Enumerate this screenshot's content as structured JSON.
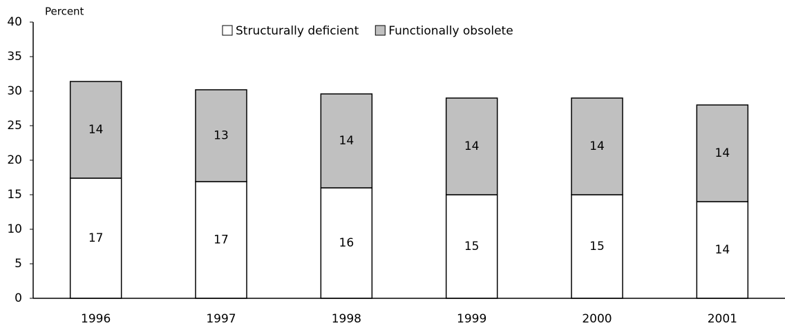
{
  "chart_data": {
    "type": "stacked_bar",
    "y_axis_label": "Percent",
    "categories": [
      "1996",
      "1997",
      "1998",
      "1999",
      "2000",
      "2001"
    ],
    "series": [
      {
        "name": "Structurally deficient",
        "color": "#ffffff",
        "values": [
          17.4,
          16.9,
          16,
          15,
          15,
          14
        ],
        "value_labels": [
          "17",
          "17",
          "16",
          "15",
          "15",
          "14"
        ]
      },
      {
        "name": "Functionally obsolete",
        "color": "#c0c0c0",
        "values": [
          14,
          13.3,
          13.6,
          14,
          14,
          14
        ],
        "value_labels": [
          "14",
          "13",
          "14",
          "14",
          "14",
          "14"
        ]
      }
    ],
    "ylim": [
      0,
      40
    ],
    "yticks": [
      0,
      5,
      10,
      15,
      20,
      25,
      30,
      35,
      40
    ],
    "legend": "top"
  }
}
